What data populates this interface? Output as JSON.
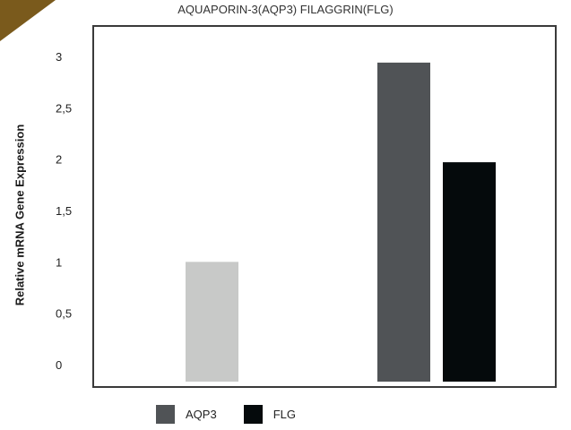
{
  "page": {
    "corner_color": "#7a5a1c"
  },
  "chart_data": {
    "type": "bar",
    "title": "AQUAPORIN-3(AQP3) FILAGGRIN(FLG)",
    "xlabel": "",
    "ylabel": "Relative mRNA Gene Expression",
    "ylim": [
      0,
      3
    ],
    "yticks": [
      "0",
      "0,5",
      "1",
      "1,5",
      "2",
      "2,5",
      "3"
    ],
    "grid": false,
    "legend_position": "bottom",
    "categories": [
      "",
      ""
    ],
    "bars": [
      {
        "category_index": 0,
        "value": 1.0,
        "color": "#c8c9c8"
      },
      {
        "category_index": 1,
        "value": 2.94,
        "color": "#505356"
      },
      {
        "category_index": 1,
        "value": 1.97,
        "color": "#050a0c"
      }
    ],
    "legend": [
      {
        "label": "AQP3",
        "color": "#505356"
      },
      {
        "label": "FLG",
        "color": "#050a0c"
      }
    ]
  }
}
